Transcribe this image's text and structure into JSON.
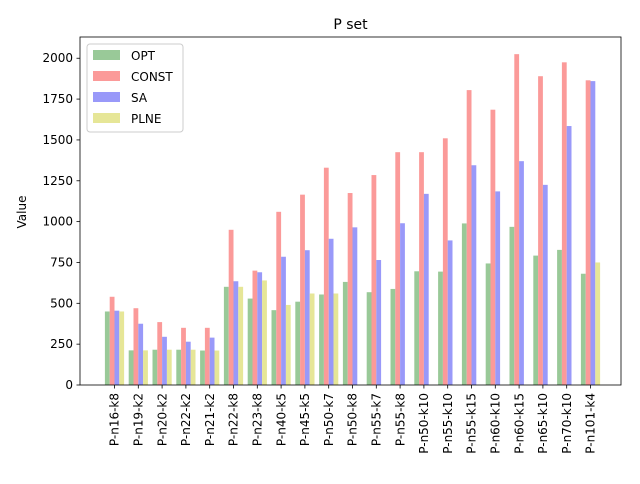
{
  "chart_data": {
    "type": "bar",
    "title": "P set",
    "xlabel": "",
    "ylabel": "Value",
    "ylim": [
      0,
      2130
    ],
    "yticks": [
      0,
      250,
      500,
      750,
      1000,
      1250,
      1500,
      1750,
      2000
    ],
    "grid": false,
    "legend_position": "top-left",
    "categories": [
      "P-n16-k8",
      "P-n19-k2",
      "P-n20-k2",
      "P-n22-k2",
      "P-n21-k2",
      "P-n22-k8",
      "P-n23-k8",
      "P-n40-k5",
      "P-n45-k5",
      "P-n50-k7",
      "P-n50-k8",
      "P-n55-k7",
      "P-n55-k8",
      "P-n50-k10",
      "P-n55-k10",
      "P-n55-k15",
      "P-n60-k10",
      "P-n60-k15",
      "P-n65-k10",
      "P-n70-k10",
      "P-n101-k4"
    ],
    "series": [
      {
        "name": "OPT",
        "color": "#99c998",
        "values": [
          450,
          212,
          216,
          216,
          211,
          601,
          529,
          458,
          510,
          554,
          631,
          568,
          588,
          696,
          694,
          989,
          744,
          968,
          792,
          827,
          681
        ]
      },
      {
        "name": "CONST",
        "color": "#fb9a99",
        "values": [
          540,
          470,
          385,
          350,
          350,
          950,
          700,
          1060,
          1165,
          1330,
          1175,
          1285,
          1425,
          1425,
          1510,
          1805,
          1685,
          2025,
          1890,
          1975,
          1865
        ]
      },
      {
        "name": "SA",
        "color": "#9999f9",
        "values": [
          455,
          375,
          295,
          265,
          290,
          635,
          690,
          785,
          825,
          895,
          965,
          765,
          990,
          1170,
          885,
          1345,
          1185,
          1370,
          1225,
          1585,
          1860
        ]
      },
      {
        "name": "PLNE",
        "color": "#e6e697",
        "values": [
          450,
          212,
          216,
          216,
          211,
          601,
          640,
          490,
          560,
          560,
          0,
          0,
          0,
          0,
          0,
          0,
          0,
          0,
          0,
          0,
          750
        ]
      }
    ]
  }
}
